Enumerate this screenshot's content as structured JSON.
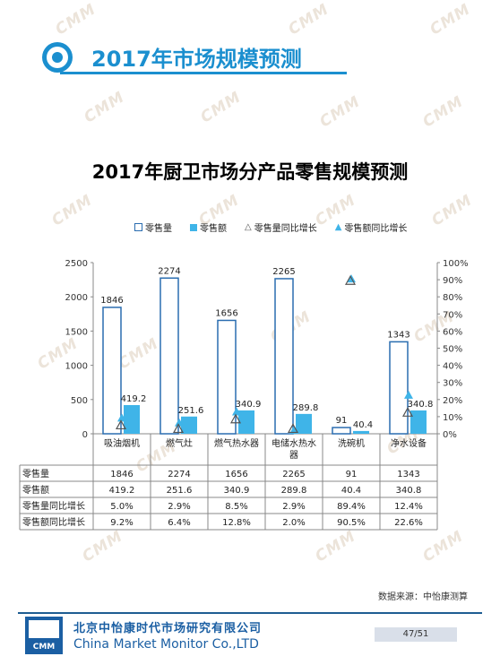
{
  "page_title": "2017年市场规模预测",
  "watermark": "CMM",
  "source": "数据来源：中怡康测算",
  "footer": {
    "company_cn": "北京中怡康时代市场研究有限公司",
    "company_en": "China Market Monitor Co.,LTD",
    "logo_text": "CMM",
    "page": "47/51"
  },
  "colors": {
    "brand_blue": "#1b8fcf",
    "bar_volume_border": "#2a6db0",
    "bar_amount_fill": "#3fb4e8",
    "triangle_fill": "#3fb4e8"
  },
  "chart_data": {
    "type": "bar",
    "title": "2017年厨卫市场分产品零售规模预测",
    "categories": [
      "吸油烟机",
      "燃气灶",
      "燃气热水器",
      "电储水热水器",
      "洗碗机",
      "净水设备"
    ],
    "category_display": [
      "吸油烟机",
      "燃气灶",
      "燃气热水器",
      "电储水热水\n器",
      "洗碗机",
      "净水设备"
    ],
    "series": [
      {
        "name": "零售量",
        "kind": "bar",
        "axis": "left",
        "values": [
          1846,
          2274,
          1656,
          2265,
          91,
          1343
        ],
        "display": [
          "1846",
          "2274",
          "1656",
          "2265",
          "91",
          "1343"
        ]
      },
      {
        "name": "零售额",
        "kind": "bar",
        "axis": "left",
        "values": [
          419.2,
          251.6,
          340.9,
          289.8,
          40.4,
          340.8
        ],
        "display": [
          "419.2",
          "251.6",
          "340.9",
          "289.8",
          "40.4",
          "340.8"
        ]
      },
      {
        "name": "零售量同比增长",
        "kind": "marker",
        "axis": "right",
        "values": [
          5.0,
          2.9,
          8.5,
          2.9,
          89.4,
          12.4
        ],
        "display": [
          "5.0%",
          "2.9%",
          "8.5%",
          "2.9%",
          "89.4%",
          "12.4%"
        ]
      },
      {
        "name": "零售额同比增长",
        "kind": "marker",
        "axis": "right",
        "values": [
          9.2,
          6.4,
          12.8,
          2.0,
          90.5,
          22.6
        ],
        "display": [
          "9.2%",
          "6.4%",
          "12.8%",
          "2.0%",
          "90.5%",
          "22.6%"
        ]
      }
    ],
    "y_left": {
      "min": 0,
      "max": 2500,
      "ticks": [
        "0",
        "500",
        "1000",
        "1500",
        "2000",
        "2500"
      ]
    },
    "y_right": {
      "min": 0,
      "max": 100,
      "ticks": [
        "0%",
        "10%",
        "20%",
        "30%",
        "40%",
        "50%",
        "60%",
        "70%",
        "80%",
        "90%",
        "100%"
      ]
    },
    "legend_position": "top",
    "grid": false
  }
}
